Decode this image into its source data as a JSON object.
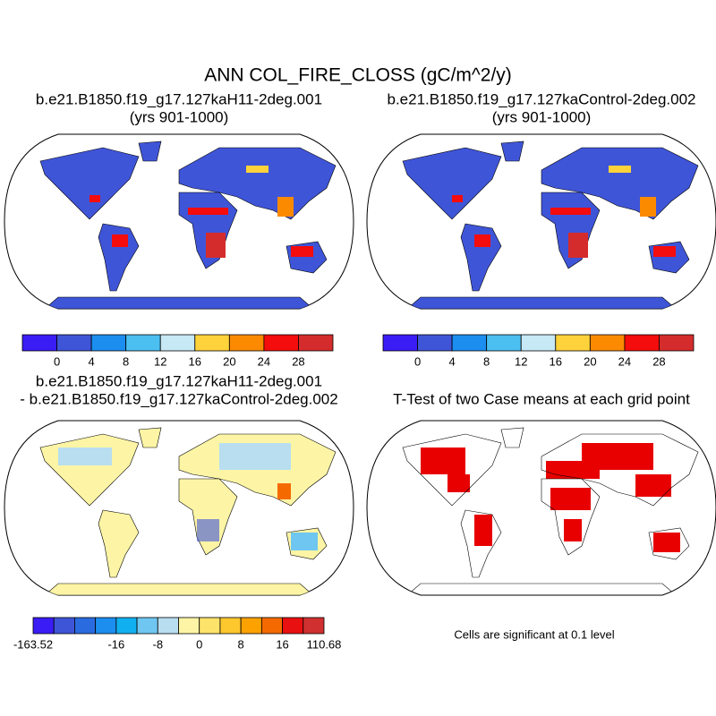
{
  "title": "ANN COL_FIRE_CLOSS (gC/m^2/y)",
  "panels": [
    {
      "title": [
        "b.e21.B1850.f19_g17.127kaH11-2deg.001",
        "(yrs 901-1000)"
      ]
    },
    {
      "title": [
        "b.e21.B1850.f19_g17.127kaControl-2deg.002",
        "(yrs 901-1000)"
      ]
    },
    {
      "title": [
        "b.e21.B1850.f19_g17.127kaH11-2deg.001",
        "- b.e21.B1850.f19_g17.127kaControl-2deg.002"
      ]
    },
    {
      "title": [
        "T-Test of two Case means at each grid point"
      ]
    }
  ],
  "colorbars": [
    {
      "colors": [
        "#3a1cf5",
        "#3f55d8",
        "#1b8ef0",
        "#4bbff0",
        "#c7e8f5",
        "#fdd23a",
        "#fc8a00",
        "#f50c0c",
        "#d42c2c"
      ],
      "labels": [
        {
          "boundary": 1,
          "text": "0"
        },
        {
          "boundary": 2,
          "text": "4"
        },
        {
          "boundary": 3,
          "text": "8"
        },
        {
          "boundary": 4,
          "text": "12"
        },
        {
          "boundary": 5,
          "text": "16"
        },
        {
          "boundary": 6,
          "text": "20"
        },
        {
          "boundary": 7,
          "text": "24"
        },
        {
          "boundary": 8,
          "text": "28"
        }
      ]
    },
    {
      "colors": [
        "#3a1cf5",
        "#3f55d8",
        "#1b8ef0",
        "#4bbff0",
        "#c7e8f5",
        "#fdd23a",
        "#fc8a00",
        "#f50c0c",
        "#d42c2c"
      ],
      "labels": [
        {
          "boundary": 1,
          "text": "0"
        },
        {
          "boundary": 2,
          "text": "4"
        },
        {
          "boundary": 3,
          "text": "8"
        },
        {
          "boundary": 4,
          "text": "12"
        },
        {
          "boundary": 5,
          "text": "16"
        },
        {
          "boundary": 6,
          "text": "20"
        },
        {
          "boundary": 7,
          "text": "24"
        },
        {
          "boundary": 8,
          "text": "28"
        }
      ]
    },
    {
      "colors": [
        "#3a1cf5",
        "#3f55d8",
        "#2a6be0",
        "#1b8ef0",
        "#10b0f0",
        "#6fc6f0",
        "#b8def0",
        "#fdf5a5",
        "#fde36a",
        "#fdc72e",
        "#fba100",
        "#f56a00",
        "#e81010",
        "#d03030"
      ],
      "labels": [
        {
          "boundary": 0,
          "text": "-163.52"
        },
        {
          "boundary": 4,
          "text": "-16"
        },
        {
          "boundary": 6,
          "text": "-8"
        },
        {
          "boundary": 8,
          "text": "0"
        },
        {
          "boundary": 10,
          "text": "8"
        },
        {
          "boundary": 12,
          "text": "16"
        },
        {
          "boundary": 14,
          "text": "110.68"
        }
      ]
    }
  ],
  "note": "Cells are significant at 0.1 level"
}
